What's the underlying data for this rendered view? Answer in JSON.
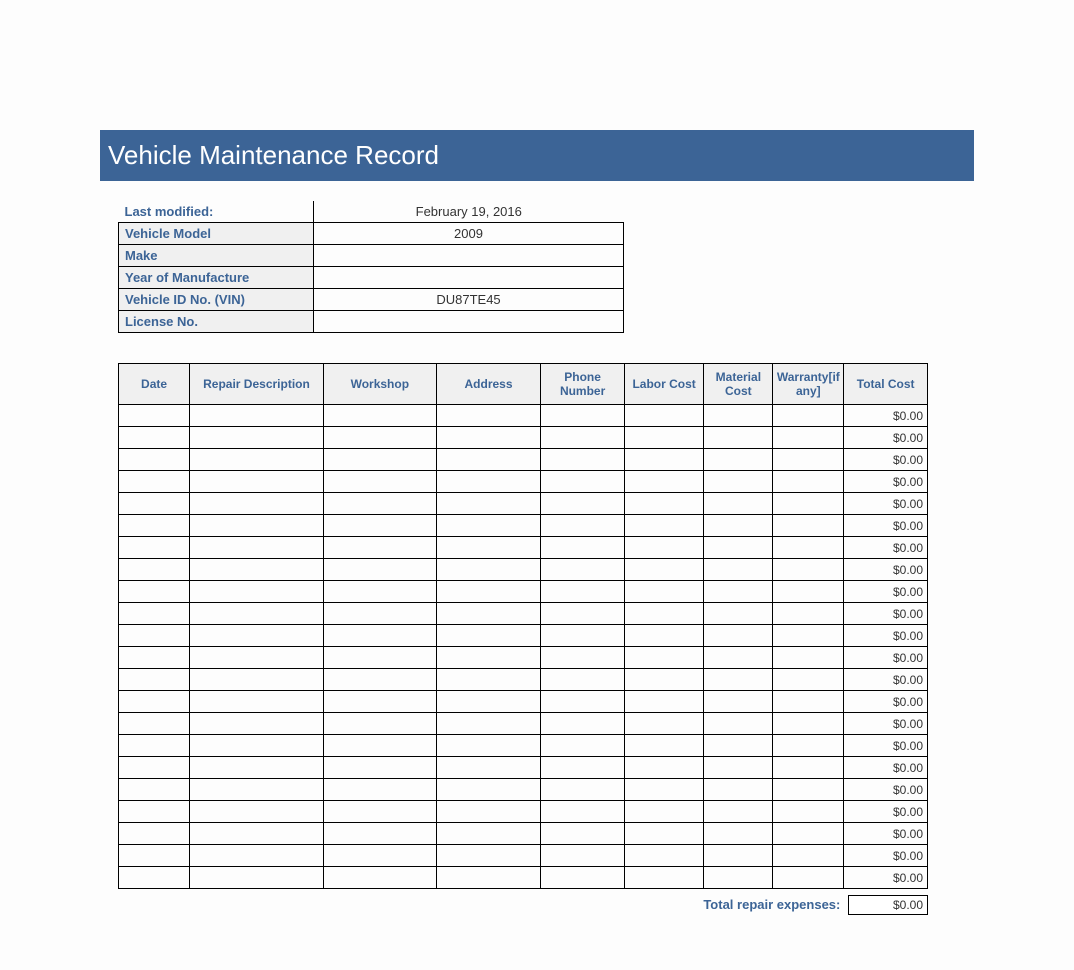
{
  "title": "Vehicle Maintenance  Record",
  "info": {
    "rows": [
      {
        "label": "Last modified:",
        "value": "February 19, 2016"
      },
      {
        "label": "Vehicle Model",
        "value": "2009"
      },
      {
        "label": "Make",
        "value": ""
      },
      {
        "label": "Year of Manufacture",
        "value": ""
      },
      {
        "label": "Vehicle ID No. (VIN)",
        "value": "DU87TE45"
      },
      {
        "label": "License No.",
        "value": ""
      }
    ]
  },
  "columns": {
    "date": "Date",
    "desc": "Repair Description",
    "workshop": "Workshop",
    "address": "Address",
    "phone": "Phone Number",
    "labor": "Labor Cost",
    "material": "Material Cost",
    "warranty": "Warranty[if any]",
    "total": "Total Cost"
  },
  "rows": [
    {
      "total": "$0.00"
    },
    {
      "total": "$0.00"
    },
    {
      "total": "$0.00"
    },
    {
      "total": "$0.00"
    },
    {
      "total": "$0.00"
    },
    {
      "total": "$0.00"
    },
    {
      "total": "$0.00"
    },
    {
      "total": "$0.00"
    },
    {
      "total": "$0.00"
    },
    {
      "total": "$0.00"
    },
    {
      "total": "$0.00"
    },
    {
      "total": "$0.00"
    },
    {
      "total": "$0.00"
    },
    {
      "total": "$0.00"
    },
    {
      "total": "$0.00"
    },
    {
      "total": "$0.00"
    },
    {
      "total": "$0.00"
    },
    {
      "total": "$0.00"
    },
    {
      "total": "$0.00"
    },
    {
      "total": "$0.00"
    },
    {
      "total": "$0.00"
    },
    {
      "total": "$0.00"
    }
  ],
  "footer": {
    "label": "Total repair expenses:",
    "value": "$0.00"
  },
  "colors": {
    "header_bg": "#3c6496",
    "label_color": "#3c6496",
    "cell_bg": "#f0f0f0",
    "border": "#000000",
    "page_bg": "#fdfdfd"
  }
}
